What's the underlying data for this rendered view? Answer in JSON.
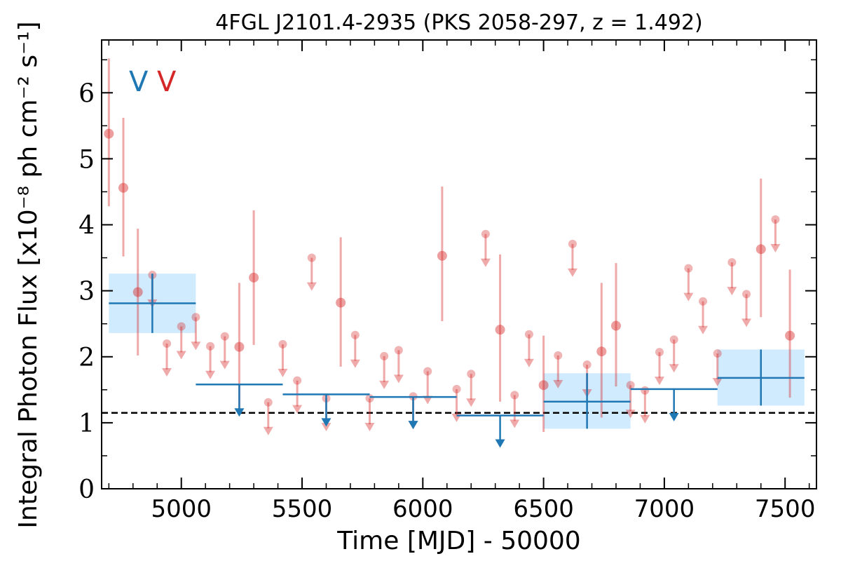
{
  "chart_data": {
    "type": "scatter",
    "title": "4FGL J2101.4-2935 (PKS 2058-297, z = 1.492)",
    "xlabel": "Time [MJD] - 50000",
    "ylabel": "Integral Photon Flux [x10⁻⁸ ph cm⁻² s⁻¹]",
    "xlim": [
      4670,
      7630
    ],
    "ylim": [
      0,
      6.8
    ],
    "xticks": [
      5000,
      5500,
      6000,
      6500,
      7000,
      7500
    ],
    "yticks": [
      0,
      1,
      2,
      3,
      4,
      5,
      6
    ],
    "grid": false,
    "legend": {
      "position": "top-left",
      "entries": [
        {
          "label": "V",
          "color": "#1f77b4"
        },
        {
          "label": "V",
          "color": "#d62728"
        }
      ]
    },
    "reference_line": {
      "y": 1.15,
      "style": "dashed",
      "color": "#000000"
    },
    "series": [
      {
        "color": "#d62728",
        "points": [
          {
            "x": 4700,
            "y": 5.38,
            "ylo": 4.28,
            "yhi": 6.52
          },
          {
            "x": 4760,
            "y": 4.56,
            "ylo": 3.52,
            "yhi": 5.62
          },
          {
            "x": 4820,
            "y": 2.98,
            "ylo": 2.02,
            "yhi": 3.94
          },
          {
            "x": 4880,
            "y": 3.24,
            "ul": true
          },
          {
            "x": 4940,
            "y": 2.2,
            "ul": true
          },
          {
            "x": 5000,
            "y": 2.46,
            "ul": true
          },
          {
            "x": 5060,
            "y": 2.6,
            "ul": true
          },
          {
            "x": 5120,
            "y": 2.16,
            "ul": true
          },
          {
            "x": 5180,
            "y": 2.31,
            "ul": true
          },
          {
            "x": 5240,
            "y": 2.15,
            "ylo": 1.18,
            "yhi": 3.12
          },
          {
            "x": 5300,
            "y": 3.2,
            "ylo": 2.18,
            "yhi": 4.22
          },
          {
            "x": 5360,
            "y": 1.31,
            "ul": true
          },
          {
            "x": 5420,
            "y": 2.19,
            "ul": true
          },
          {
            "x": 5480,
            "y": 1.64,
            "ul": true
          },
          {
            "x": 5540,
            "y": 3.5,
            "ul": true
          },
          {
            "x": 5600,
            "y": 1.37,
            "ul": true
          },
          {
            "x": 5660,
            "y": 2.82,
            "ylo": 1.85,
            "yhi": 3.81
          },
          {
            "x": 5720,
            "y": 2.33,
            "ul": true
          },
          {
            "x": 5780,
            "y": 1.37,
            "ul": true
          },
          {
            "x": 5840,
            "y": 2.01,
            "ul": true
          },
          {
            "x": 5900,
            "y": 2.1,
            "ul": true
          },
          {
            "x": 5960,
            "y": 1.4,
            "ul": true
          },
          {
            "x": 6020,
            "y": 1.78,
            "ul": true
          },
          {
            "x": 6080,
            "y": 3.53,
            "ylo": 2.54,
            "yhi": 4.58
          },
          {
            "x": 6140,
            "y": 1.51,
            "ul": true
          },
          {
            "x": 6200,
            "y": 1.74,
            "ul": true
          },
          {
            "x": 6260,
            "y": 3.86,
            "ul": true
          },
          {
            "x": 6320,
            "y": 2.41,
            "ylo": 1.32,
            "yhi": 3.55
          },
          {
            "x": 6380,
            "y": 1.42,
            "ul": true
          },
          {
            "x": 6440,
            "y": 2.34,
            "ul": true
          },
          {
            "x": 6500,
            "y": 1.57,
            "ylo": 0.86,
            "yhi": 2.32
          },
          {
            "x": 6560,
            "y": 2.02,
            "ul": true
          },
          {
            "x": 6620,
            "y": 3.71,
            "ul": true
          },
          {
            "x": 6680,
            "y": 1.88,
            "ul": true
          },
          {
            "x": 6740,
            "y": 2.08,
            "ylo": 1.08,
            "yhi": 3.12
          },
          {
            "x": 6800,
            "y": 2.47,
            "ylo": 1.55,
            "yhi": 3.42
          },
          {
            "x": 6860,
            "y": 1.57,
            "ul": true
          },
          {
            "x": 6920,
            "y": 1.49,
            "ul": true
          },
          {
            "x": 6980,
            "y": 2.07,
            "ul": true
          },
          {
            "x": 7040,
            "y": 2.26,
            "ul": true
          },
          {
            "x": 7100,
            "y": 3.34,
            "ul": true
          },
          {
            "x": 7160,
            "y": 2.84,
            "ul": true
          },
          {
            "x": 7220,
            "y": 2.05,
            "ul": true
          },
          {
            "x": 7280,
            "y": 3.43,
            "ul": true
          },
          {
            "x": 7340,
            "y": 2.95,
            "ul": true
          },
          {
            "x": 7400,
            "y": 3.63,
            "ylo": 2.6,
            "yhi": 4.7
          },
          {
            "x": 7460,
            "y": 4.08,
            "ul": true
          },
          {
            "x": 7520,
            "y": 2.32,
            "ylo": 1.38,
            "yhi": 3.32
          }
        ]
      },
      {
        "color": "#1f77b4",
        "bins": [
          {
            "x0": 4700,
            "x1": 5060,
            "y": 2.81,
            "ylo": 2.36,
            "yhi": 3.26,
            "band": true
          },
          {
            "x0": 5060,
            "x1": 5420,
            "y": 1.58,
            "ul": true
          },
          {
            "x0": 5420,
            "x1": 5780,
            "y": 1.43,
            "ul": true
          },
          {
            "x0": 5780,
            "x1": 6140,
            "y": 1.39,
            "ul": true
          },
          {
            "x0": 6140,
            "x1": 6500,
            "y": 1.11,
            "ul": true
          },
          {
            "x0": 6500,
            "x1": 6860,
            "y": 1.32,
            "ylo": 0.91,
            "yhi": 1.75,
            "band": true
          },
          {
            "x0": 6860,
            "x1": 7220,
            "y": 1.51,
            "ul": true
          },
          {
            "x0": 7220,
            "x1": 7580,
            "y": 1.68,
            "ylo": 1.26,
            "yhi": 2.11,
            "band": true
          }
        ]
      }
    ]
  }
}
